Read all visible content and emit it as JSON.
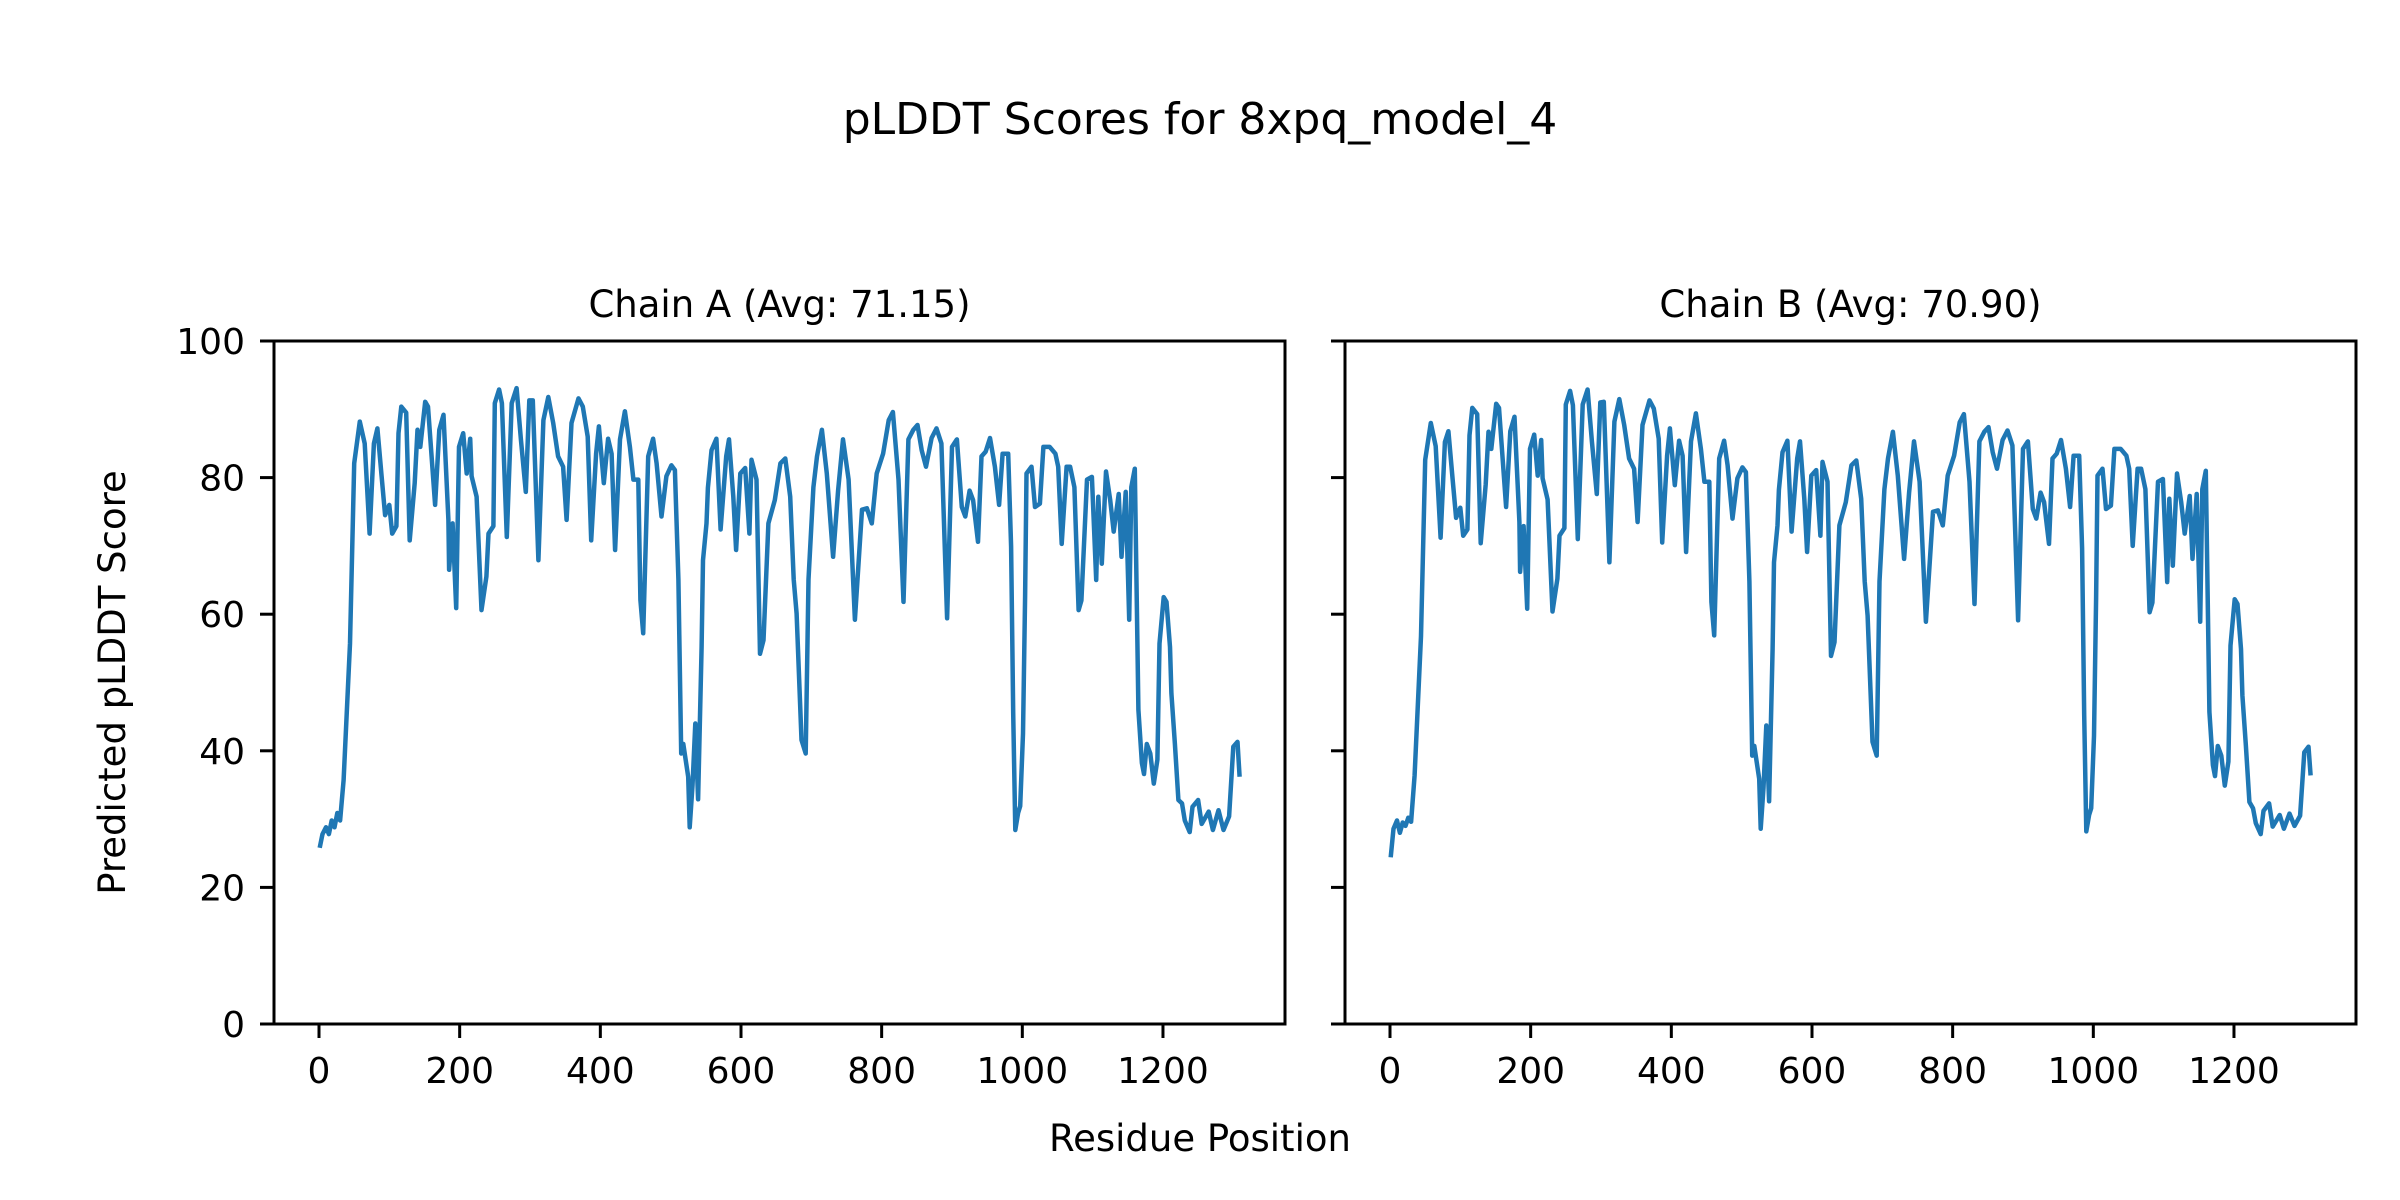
{
  "chart_data": {
    "type": "line",
    "title": "pLDDT Scores for 8xpq_model_4",
    "xlabel": "Residue Position",
    "ylabel": "Predicted pLDDT Score",
    "line_color": "#1f77b4",
    "shared_y": true,
    "grid": false,
    "legend": "none",
    "xlim": [
      -64,
      1373.5
    ],
    "ylim": [
      0,
      100
    ],
    "xticks": [
      0,
      200,
      400,
      600,
      800,
      1000,
      1200
    ],
    "xtick_labels": [
      "0",
      "200",
      "400",
      "600",
      "800",
      "1000",
      "1200"
    ],
    "yticks": [
      0,
      20,
      40,
      60,
      80,
      100
    ],
    "ytick_labels": [
      "0",
      "20",
      "40",
      "60",
      "80",
      "100"
    ],
    "panels": [
      {
        "title": "Chain A (Avg: 71.15)",
        "chain": "A",
        "average": 71.15,
        "x": [
          1,
          5,
          10,
          14,
          18,
          22,
          26,
          30,
          35,
          44,
          50,
          58,
          65,
          72,
          78,
          83,
          89,
          94,
          100,
          104,
          110,
          113,
          117,
          124,
          129,
          136,
          140,
          144,
          151,
          155,
          165,
          171,
          177,
          184,
          185,
          190,
          195,
          199,
          205,
          210,
          215,
          217,
          224,
          231,
          238,
          241,
          248,
          250,
          256,
          260,
          267,
          274,
          281,
          287,
          294,
          299,
          304,
          312,
          319,
          326,
          333,
          340,
          347,
          352,
          359,
          369,
          375,
          382,
          387,
          394,
          398,
          405,
          411,
          416,
          421,
          428,
          435,
          442,
          447,
          454,
          457,
          461,
          468,
          475,
          480,
          487,
          494,
          501,
          506,
          511,
          515,
          518,
          525,
          527,
          531,
          535,
          539,
          544,
          546,
          551,
          553,
          558,
          565,
          571,
          579,
          583,
          589,
          593,
          599,
          606,
          612,
          615,
          622,
          627,
          632,
          639,
          648,
          656,
          663,
          670,
          675,
          679,
          686,
          692,
          696,
          703,
          708,
          715,
          722,
          731,
          738,
          745,
          753,
          762,
          772,
          779,
          786,
          793,
          802,
          810,
          816,
          824,
          831,
          838,
          845,
          851,
          857,
          863,
          871,
          878,
          885,
          893,
          900,
          907,
          914,
          919,
          925,
          930,
          937,
          942,
          948,
          954,
          961,
          967,
          972,
          980,
          984,
          987,
          990,
          994,
          997,
          1001,
          1004,
          1006,
          1013,
          1018,
          1025,
          1030,
          1039,
          1047,
          1051,
          1056,
          1063,
          1068,
          1074,
          1080,
          1084,
          1092,
          1099,
          1105,
          1108,
          1113,
          1119,
          1125,
          1130,
          1137,
          1141,
          1147,
          1152,
          1155,
          1160,
          1165,
          1170,
          1173,
          1177,
          1182,
          1187,
          1192,
          1195,
          1201,
          1205,
          1210,
          1212,
          1217,
          1222,
          1227,
          1231,
          1238,
          1242,
          1250,
          1255,
          1265,
          1271,
          1279,
          1286,
          1294,
          1300,
          1306,
          1309
        ],
        "y": [
          25.8,
          27.8,
          28.8,
          27.8,
          29.8,
          28.8,
          30.9,
          29.8,
          35.7,
          55.7,
          82.1,
          88.2,
          85.0,
          71.8,
          85.0,
          87.2,
          80.2,
          74.5,
          76.0,
          71.8,
          72.9,
          86.5,
          90.4,
          89.5,
          70.8,
          79.2,
          87.0,
          84.5,
          91.1,
          90.4,
          76.0,
          87.0,
          89.2,
          73.8,
          66.5,
          73.3,
          60.9,
          84.5,
          86.5,
          80.6,
          85.7,
          80.2,
          77.2,
          60.6,
          65.5,
          71.8,
          72.9,
          90.9,
          92.9,
          90.9,
          71.3,
          90.9,
          93.1,
          85.6,
          77.9,
          91.3,
          91.3,
          67.9,
          88.4,
          91.8,
          88.0,
          83.1,
          81.6,
          73.8,
          88.0,
          91.6,
          90.4,
          86.0,
          70.8,
          83.5,
          87.5,
          79.2,
          85.7,
          83.5,
          69.4,
          85.6,
          89.7,
          84.5,
          79.7,
          79.7,
          62.1,
          57.2,
          83.1,
          85.7,
          82.1,
          74.3,
          80.2,
          81.8,
          81.1,
          65.1,
          39.6,
          41.0,
          36.2,
          28.8,
          34.9,
          44.0,
          32.9,
          55.2,
          67.9,
          73.3,
          78.5,
          84.0,
          85.7,
          72.4,
          83.1,
          85.6,
          77.2,
          69.4,
          80.6,
          81.4,
          71.8,
          82.6,
          79.7,
          54.2,
          56.2,
          73.3,
          76.7,
          82.1,
          82.8,
          77.2,
          65.1,
          60.1,
          41.6,
          39.6,
          65.1,
          78.6,
          83.1,
          87.0,
          80.6,
          68.4,
          78.1,
          85.6,
          79.7,
          59.2,
          75.3,
          75.5,
          73.3,
          80.6,
          83.5,
          88.4,
          89.6,
          79.7,
          61.8,
          85.6,
          87.0,
          87.7,
          84.0,
          81.6,
          85.8,
          87.2,
          85.0,
          59.4,
          84.5,
          85.6,
          75.7,
          74.3,
          78.1,
          76.7,
          70.6,
          83.1,
          83.8,
          85.8,
          81.6,
          76.0,
          83.5,
          83.5,
          69.9,
          45.5,
          28.4,
          30.9,
          31.9,
          42.5,
          62.6,
          80.6,
          81.6,
          75.7,
          76.2,
          84.5,
          84.5,
          83.5,
          81.6,
          70.3,
          81.6,
          81.6,
          78.6,
          60.6,
          62.0,
          79.7,
          80.1,
          65.0,
          77.2,
          67.4,
          80.9,
          76.7,
          72.1,
          77.6,
          68.4,
          77.9,
          59.2,
          78.6,
          81.3,
          46.0,
          38.2,
          36.6,
          41.0,
          39.6,
          35.2,
          38.7,
          55.7,
          62.5,
          61.8,
          55.2,
          48.4,
          41.0,
          32.8,
          32.3,
          29.8,
          28.1,
          31.8,
          32.8,
          29.3,
          31.1,
          28.4,
          31.3,
          28.4,
          30.4,
          40.6,
          41.3,
          36.2
        ]
      },
      {
        "title": "Chain B (Avg: 70.90)",
        "chain": "B",
        "average": 70.9,
        "x": [
          1,
          5,
          10,
          14,
          18,
          22,
          26,
          30,
          35,
          44,
          50,
          58,
          65,
          72,
          78,
          83,
          89,
          94,
          100,
          104,
          110,
          113,
          117,
          124,
          129,
          136,
          140,
          144,
          151,
          155,
          165,
          171,
          177,
          184,
          185,
          190,
          195,
          199,
          205,
          210,
          215,
          217,
          224,
          231,
          238,
          241,
          248,
          250,
          256,
          260,
          267,
          274,
          281,
          287,
          294,
          299,
          304,
          312,
          319,
          326,
          333,
          340,
          347,
          352,
          359,
          369,
          375,
          382,
          387,
          394,
          398,
          405,
          411,
          416,
          421,
          428,
          435,
          442,
          447,
          454,
          457,
          461,
          468,
          475,
          480,
          487,
          494,
          501,
          506,
          511,
          515,
          518,
          525,
          527,
          531,
          535,
          539,
          544,
          546,
          551,
          553,
          558,
          565,
          571,
          579,
          583,
          589,
          593,
          599,
          606,
          612,
          615,
          622,
          627,
          632,
          639,
          648,
          656,
          663,
          670,
          675,
          679,
          686,
          692,
          696,
          703,
          708,
          715,
          722,
          731,
          738,
          745,
          753,
          762,
          772,
          779,
          786,
          793,
          802,
          810,
          816,
          824,
          831,
          838,
          845,
          851,
          857,
          863,
          871,
          878,
          885,
          893,
          900,
          907,
          914,
          919,
          925,
          930,
          937,
          942,
          948,
          954,
          961,
          967,
          972,
          980,
          984,
          987,
          990,
          994,
          997,
          1001,
          1004,
          1006,
          1013,
          1018,
          1025,
          1030,
          1039,
          1047,
          1051,
          1056,
          1063,
          1068,
          1074,
          1080,
          1084,
          1092,
          1099,
          1105,
          1108,
          1113,
          1119,
          1125,
          1130,
          1137,
          1141,
          1147,
          1152,
          1155,
          1160,
          1165,
          1170,
          1173,
          1177,
          1182,
          1187,
          1192,
          1195,
          1201,
          1205,
          1210,
          1212,
          1217,
          1222,
          1227,
          1231,
          1238,
          1242,
          1250,
          1255,
          1265,
          1271,
          1279,
          1286,
          1294,
          1300,
          1306,
          1309
        ],
        "y": [
          24.4,
          28.6,
          29.8,
          28.0,
          29.5,
          29.0,
          30.2,
          29.6,
          36.4,
          56.8,
          82.6,
          88.0,
          84.6,
          71.2,
          85.2,
          86.8,
          79.8,
          74.1,
          75.6,
          71.5,
          72.4,
          86.2,
          90.2,
          89.3,
          70.4,
          79.0,
          86.7,
          84.2,
          90.8,
          90.2,
          75.7,
          86.8,
          88.9,
          73.5,
          66.2,
          72.9,
          60.8,
          84.2,
          86.3,
          80.3,
          85.5,
          79.9,
          76.8,
          60.4,
          65.2,
          71.5,
          72.6,
          90.7,
          92.7,
          90.6,
          71.0,
          90.7,
          92.9,
          85.3,
          77.6,
          91.0,
          91.1,
          67.6,
          88.2,
          91.5,
          87.7,
          82.8,
          81.3,
          73.5,
          87.7,
          91.3,
          90.1,
          85.7,
          70.5,
          83.2,
          87.2,
          78.9,
          85.4,
          83.2,
          69.1,
          85.3,
          89.4,
          84.2,
          79.4,
          79.4,
          61.8,
          56.9,
          82.8,
          85.4,
          81.8,
          74.0,
          79.9,
          81.5,
          80.8,
          64.8,
          39.3,
          40.7,
          35.9,
          28.6,
          34.6,
          43.7,
          32.6,
          54.9,
          67.6,
          73.0,
          78.2,
          83.7,
          85.4,
          72.1,
          82.8,
          85.3,
          76.9,
          69.1,
          80.3,
          81.1,
          71.5,
          82.3,
          79.4,
          53.9,
          55.9,
          73.0,
          76.4,
          81.8,
          82.5,
          76.9,
          64.8,
          59.8,
          41.3,
          39.3,
          64.8,
          78.3,
          82.8,
          86.7,
          80.3,
          68.1,
          77.8,
          85.3,
          79.4,
          58.9,
          75.0,
          75.2,
          73.0,
          80.3,
          83.2,
          88.1,
          89.3,
          79.4,
          61.5,
          85.3,
          86.7,
          87.4,
          83.7,
          81.3,
          85.5,
          86.9,
          84.7,
          59.1,
          84.2,
          85.3,
          75.4,
          74.0,
          77.8,
          76.4,
          70.3,
          82.8,
          83.5,
          85.5,
          81.3,
          75.7,
          83.2,
          83.2,
          69.6,
          45.2,
          28.2,
          30.6,
          31.6,
          42.2,
          62.3,
          80.3,
          81.3,
          75.4,
          75.9,
          84.2,
          84.2,
          83.2,
          81.3,
          70.0,
          81.3,
          81.3,
          78.3,
          60.3,
          61.7,
          79.4,
          79.8,
          64.7,
          76.9,
          67.1,
          80.6,
          76.4,
          71.8,
          77.3,
          68.1,
          77.6,
          58.9,
          78.3,
          81.0,
          45.7,
          37.9,
          36.3,
          40.7,
          39.3,
          34.9,
          38.4,
          55.4,
          62.2,
          61.5,
          54.9,
          48.1,
          40.7,
          32.5,
          31.6,
          29.4,
          27.8,
          31.2,
          32.3,
          28.9,
          30.6,
          28.6,
          30.8,
          29.0,
          30.5,
          39.8,
          40.6,
          36.4
        ]
      }
    ]
  }
}
